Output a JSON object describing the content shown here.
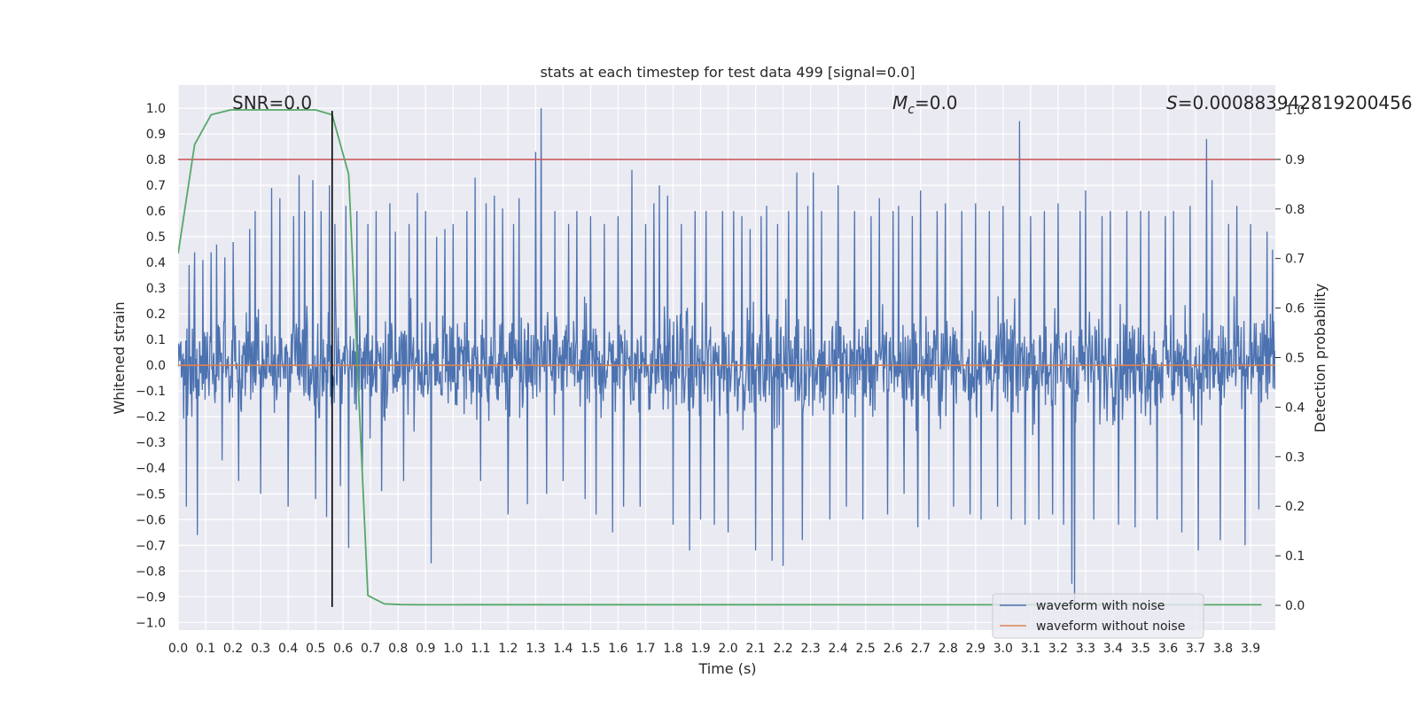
{
  "chart_data": {
    "type": "line",
    "title": "stats at each timestep for test data 499 [signal=0.0]",
    "xlabel": "Time (s)",
    "ylabel": "Whitened strain",
    "y2label": "Detection probability",
    "xlim": [
      0.0,
      3.99
    ],
    "ylim": [
      -1.03,
      1.09
    ],
    "y2lim": [
      -0.05,
      1.05
    ],
    "xticks": [
      0.0,
      0.1,
      0.2,
      0.3,
      0.4,
      0.5,
      0.6,
      0.7,
      0.8,
      0.9,
      1.0,
      1.1,
      1.2,
      1.3,
      1.4,
      1.5,
      1.6,
      1.7,
      1.8,
      1.9,
      2.0,
      2.1,
      2.2,
      2.3,
      2.4,
      2.5,
      2.6,
      2.7,
      2.8,
      2.9,
      3.0,
      3.1,
      3.2,
      3.3,
      3.4,
      3.5,
      3.6,
      3.7,
      3.8,
      3.9
    ],
    "yticks": [
      1.0,
      0.9,
      0.8,
      0.7,
      0.6,
      0.5,
      0.4,
      0.3,
      0.2,
      0.1,
      0.0,
      -0.1,
      -0.2,
      -0.3,
      -0.4,
      -0.5,
      -0.6,
      -0.7,
      -0.8,
      -0.9,
      -1.0
    ],
    "y2ticks": [
      1.0,
      0.9,
      0.8,
      0.7,
      0.6,
      0.5,
      0.4,
      0.3,
      0.2,
      0.1,
      0.0
    ],
    "grid": true,
    "legend_placement": "lower-right",
    "annotations": {
      "snr": "SNR=0.0",
      "mc_symbol": "M",
      "mc_sub": "c",
      "mc_value": "=0.0",
      "s_symbol": "S",
      "s_value": "=0.000883942819200456"
    },
    "series": [
      {
        "name": "waveform with noise",
        "color": "#4c72b0",
        "axis": "left",
        "note": "dense noise envelope sampled by features below",
        "spikes": [
          [
            0.03,
            -0.55
          ],
          [
            0.04,
            0.39
          ],
          [
            0.06,
            0.44
          ],
          [
            0.07,
            -0.66
          ],
          [
            0.09,
            0.41
          ],
          [
            0.12,
            0.44
          ],
          [
            0.14,
            0.47
          ],
          [
            0.16,
            -0.37
          ],
          [
            0.17,
            0.42
          ],
          [
            0.2,
            0.48
          ],
          [
            0.22,
            -0.45
          ],
          [
            0.26,
            0.53
          ],
          [
            0.28,
            0.6
          ],
          [
            0.3,
            -0.5
          ],
          [
            0.34,
            0.69
          ],
          [
            0.37,
            0.65
          ],
          [
            0.4,
            -0.55
          ],
          [
            0.42,
            0.58
          ],
          [
            0.44,
            0.74
          ],
          [
            0.46,
            0.6
          ],
          [
            0.49,
            0.72
          ],
          [
            0.5,
            -0.52
          ],
          [
            0.52,
            0.6
          ],
          [
            0.54,
            -0.59
          ],
          [
            0.55,
            0.7
          ],
          [
            0.57,
            0.55
          ],
          [
            0.59,
            -0.47
          ],
          [
            0.61,
            0.62
          ],
          [
            0.62,
            -0.71
          ],
          [
            0.65,
            0.6
          ],
          [
            0.67,
            -0.42
          ],
          [
            0.69,
            0.55
          ],
          [
            0.72,
            0.6
          ],
          [
            0.74,
            -0.49
          ],
          [
            0.77,
            0.63
          ],
          [
            0.79,
            0.52
          ],
          [
            0.82,
            -0.45
          ],
          [
            0.84,
            0.55
          ],
          [
            0.87,
            0.67
          ],
          [
            0.9,
            0.6
          ],
          [
            0.92,
            -0.77
          ],
          [
            0.94,
            0.5
          ],
          [
            0.97,
            0.53
          ],
          [
            1.0,
            0.55
          ],
          [
            1.05,
            0.6
          ],
          [
            1.08,
            0.73
          ],
          [
            1.1,
            -0.45
          ],
          [
            1.12,
            0.63
          ],
          [
            1.15,
            0.66
          ],
          [
            1.18,
            0.61
          ],
          [
            1.2,
            -0.58
          ],
          [
            1.22,
            0.55
          ],
          [
            1.24,
            0.65
          ],
          [
            1.27,
            -0.54
          ],
          [
            1.3,
            0.83
          ],
          [
            1.32,
            1.0
          ],
          [
            1.34,
            -0.5
          ],
          [
            1.37,
            0.6
          ],
          [
            1.4,
            -0.45
          ],
          [
            1.42,
            0.55
          ],
          [
            1.45,
            0.6
          ],
          [
            1.48,
            -0.52
          ],
          [
            1.5,
            0.58
          ],
          [
            1.52,
            -0.58
          ],
          [
            1.55,
            0.55
          ],
          [
            1.58,
            -0.65
          ],
          [
            1.6,
            0.58
          ],
          [
            1.62,
            -0.55
          ],
          [
            1.65,
            0.76
          ],
          [
            1.68,
            -0.55
          ],
          [
            1.7,
            0.55
          ],
          [
            1.73,
            0.63
          ],
          [
            1.75,
            0.7
          ],
          [
            1.78,
            0.66
          ],
          [
            1.8,
            -0.62
          ],
          [
            1.83,
            0.55
          ],
          [
            1.86,
            -0.72
          ],
          [
            1.88,
            0.6
          ],
          [
            1.9,
            -0.6
          ],
          [
            1.92,
            0.6
          ],
          [
            1.95,
            -0.62
          ],
          [
            1.98,
            0.6
          ],
          [
            2.0,
            -0.65
          ],
          [
            2.02,
            0.6
          ],
          [
            2.05,
            0.58
          ],
          [
            2.08,
            0.53
          ],
          [
            2.1,
            -0.72
          ],
          [
            2.12,
            0.58
          ],
          [
            2.14,
            0.62
          ],
          [
            2.16,
            -0.76
          ],
          [
            2.18,
            0.55
          ],
          [
            2.2,
            -0.78
          ],
          [
            2.22,
            0.6
          ],
          [
            2.25,
            0.75
          ],
          [
            2.27,
            -0.68
          ],
          [
            2.29,
            0.62
          ],
          [
            2.31,
            0.75
          ],
          [
            2.34,
            0.6
          ],
          [
            2.37,
            -0.6
          ],
          [
            2.4,
            0.7
          ],
          [
            2.43,
            -0.55
          ],
          [
            2.46,
            0.6
          ],
          [
            2.49,
            -0.6
          ],
          [
            2.52,
            0.58
          ],
          [
            2.55,
            0.65
          ],
          [
            2.58,
            -0.58
          ],
          [
            2.6,
            0.6
          ],
          [
            2.62,
            0.62
          ],
          [
            2.64,
            -0.5
          ],
          [
            2.67,
            0.58
          ],
          [
            2.69,
            -0.63
          ],
          [
            2.7,
            0.68
          ],
          [
            2.73,
            -0.6
          ],
          [
            2.76,
            0.6
          ],
          [
            2.79,
            0.63
          ],
          [
            2.82,
            -0.55
          ],
          [
            2.85,
            0.6
          ],
          [
            2.88,
            -0.58
          ],
          [
            2.9,
            0.63
          ],
          [
            2.92,
            -0.6
          ],
          [
            2.95,
            0.6
          ],
          [
            2.98,
            -0.55
          ],
          [
            3.0,
            0.62
          ],
          [
            3.03,
            -0.6
          ],
          [
            3.06,
            0.95
          ],
          [
            3.08,
            -0.62
          ],
          [
            3.1,
            0.58
          ],
          [
            3.13,
            -0.6
          ],
          [
            3.15,
            0.6
          ],
          [
            3.18,
            -0.58
          ],
          [
            3.2,
            0.63
          ],
          [
            3.22,
            -0.62
          ],
          [
            3.25,
            -0.85
          ],
          [
            3.26,
            -0.93
          ],
          [
            3.28,
            0.6
          ],
          [
            3.3,
            0.68
          ],
          [
            3.33,
            -0.6
          ],
          [
            3.36,
            0.58
          ],
          [
            3.39,
            0.6
          ],
          [
            3.42,
            -0.62
          ],
          [
            3.45,
            0.6
          ],
          [
            3.48,
            -0.63
          ],
          [
            3.5,
            0.6
          ],
          [
            3.53,
            0.6
          ],
          [
            3.56,
            -0.6
          ],
          [
            3.59,
            0.58
          ],
          [
            3.62,
            0.6
          ],
          [
            3.65,
            -0.65
          ],
          [
            3.68,
            0.62
          ],
          [
            3.71,
            -0.72
          ],
          [
            3.74,
            0.88
          ],
          [
            3.76,
            0.72
          ],
          [
            3.79,
            -0.68
          ],
          [
            3.82,
            0.55
          ],
          [
            3.85,
            0.62
          ],
          [
            3.88,
            -0.7
          ],
          [
            3.9,
            0.55
          ],
          [
            3.93,
            -0.56
          ],
          [
            3.96,
            0.52
          ],
          [
            3.98,
            0.45
          ]
        ]
      },
      {
        "name": "waveform without noise",
        "color": "#dd8452",
        "axis": "left",
        "x": [
          0.0,
          3.99
        ],
        "y": [
          0.0,
          0.0
        ]
      },
      {
        "name": "",
        "color": "#55a868",
        "axis": "right",
        "x": [
          0.0,
          0.06,
          0.12,
          0.19,
          0.25,
          0.31,
          0.38,
          0.44,
          0.5,
          0.56,
          0.62,
          0.69,
          0.75,
          0.81,
          0.88,
          0.94,
          1.0,
          1.06,
          1.12,
          1.19,
          3.94
        ],
        "y": [
          0.71,
          0.93,
          0.99,
          1.0,
          1.0,
          1.0,
          1.0,
          1.0,
          1.0,
          0.99,
          0.87,
          0.02,
          0.003,
          0.0015,
          0.0012,
          0.0012,
          0.0012,
          0.0013,
          0.0013,
          0.0013,
          0.0011
        ]
      }
    ],
    "reference_lines": [
      {
        "orientation": "horizontal",
        "axis": "right",
        "value": 0.9,
        "color": "#c44e52"
      },
      {
        "orientation": "vertical",
        "value": 0.56,
        "ymin": -0.94,
        "ymax": 0.99,
        "color": "#000000"
      }
    ]
  }
}
